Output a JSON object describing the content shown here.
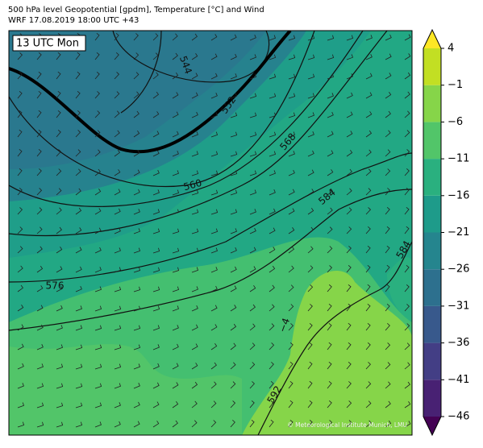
{
  "header": {
    "title_lines": [
      "500 hPa level Geopotential [gpdm], Temperature [°C] and Wind",
      "WRF 17.08.2019 18:00 UTC +43"
    ]
  },
  "map": {
    "time_label": "13 UTC Mon",
    "contour_labels": [
      "544",
      "552",
      "560",
      "568",
      "584",
      "576",
      "584",
      "−4",
      "592"
    ],
    "credit": "© Meteorological Institute Munich, LMU"
  },
  "colorbar": {
    "ticks": [
      4,
      {
        "value": -1,
        "label": "−1"
      },
      {
        "value": -6,
        "label": "−6"
      },
      {
        "value": -11,
        "label": "−11"
      },
      {
        "value": -16,
        "label": "−16"
      },
      {
        "value": -21,
        "label": "−21"
      },
      {
        "value": -26,
        "label": "−26"
      },
      {
        "value": -31,
        "label": "−31"
      },
      {
        "value": -36,
        "label": "−36"
      },
      {
        "value": -41,
        "label": "−41"
      },
      {
        "value": -46,
        "label": "−46"
      }
    ],
    "colors": [
      "#440154",
      "#482173",
      "#433e85",
      "#38598c",
      "#2d708e",
      "#25858e",
      "#1e9b8a",
      "#2ab07f",
      "#52c569",
      "#86d549",
      "#c2df23",
      "#fde725"
    ]
  }
}
